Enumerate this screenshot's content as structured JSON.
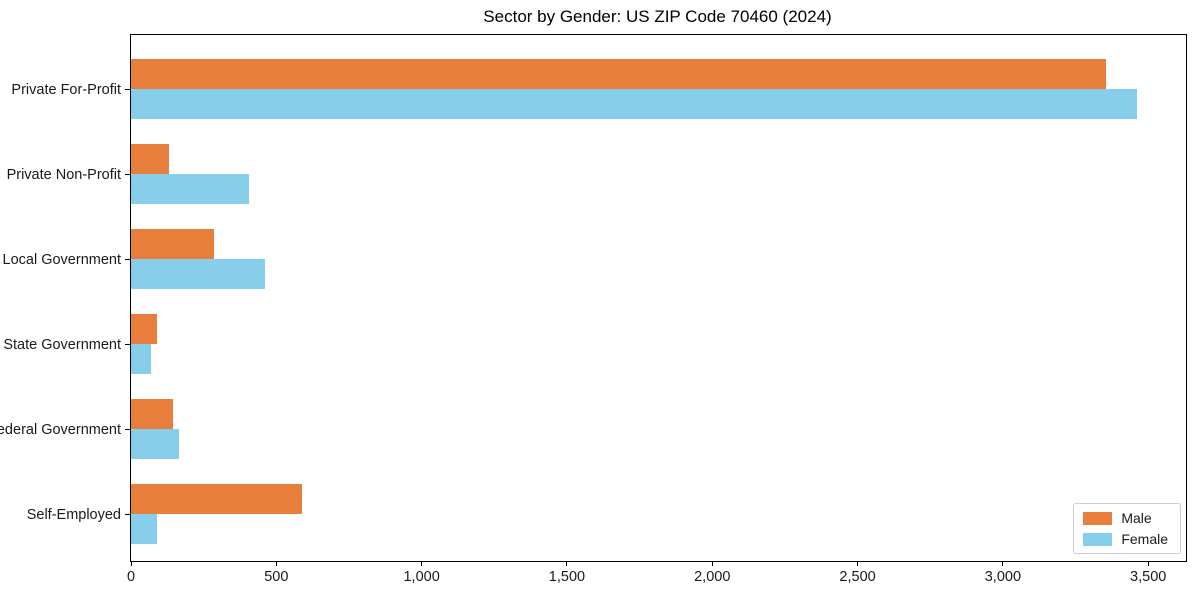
{
  "chart_data": {
    "type": "bar",
    "orientation": "horizontal",
    "title": "Sector by Gender: US ZIP Code 70460 (2024)",
    "categories": [
      "Private For-Profit",
      "Private Non-Profit",
      "Local Government",
      "State Government",
      "Federal Government",
      "Self-Employed"
    ],
    "series": [
      {
        "name": "Male",
        "color": "#e87e3c",
        "values": [
          3355,
          130,
          285,
          90,
          145,
          590
        ]
      },
      {
        "name": "Female",
        "color": "#87ceeb",
        "values": [
          3460,
          405,
          460,
          70,
          165,
          90
        ]
      }
    ],
    "xlabel": "",
    "ylabel": "",
    "xlim": [
      0,
      3630
    ],
    "xticks": [
      0,
      500,
      1000,
      1500,
      2000,
      2500,
      3000,
      3500
    ],
    "xtick_labels": [
      "0",
      "500",
      "1,000",
      "1,500",
      "2,000",
      "2,500",
      "3,000",
      "3,500"
    ],
    "grid": false,
    "legend": {
      "position": "lower right",
      "entries": [
        "Male",
        "Female"
      ]
    }
  }
}
